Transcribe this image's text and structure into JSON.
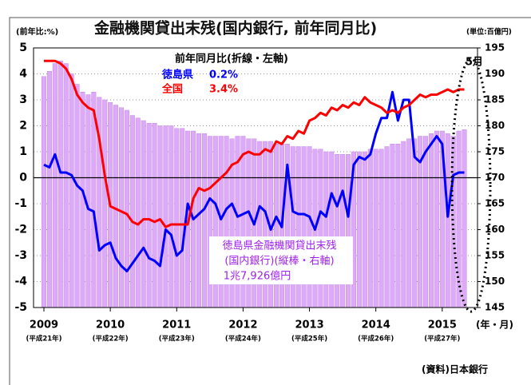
{
  "chart_data": {
    "type": "bar_line",
    "title": "金融機関貸出末残(国内銀行, 前年同月比)",
    "ylabel": "(前年比:%)",
    "y2label": "(単位:百億円)",
    "legend_title": "前年同月比(折線・左軸)",
    "ylim": [
      -5,
      5
    ],
    "yticks": [
      -5,
      -4,
      -3,
      -2,
      -1,
      0,
      1,
      2,
      3,
      4,
      5
    ],
    "y2lim": [
      145,
      195
    ],
    "y2ticks": [
      195,
      190,
      185,
      180,
      175,
      170,
      165,
      160,
      155,
      150,
      145
    ],
    "grid": true,
    "categories": [
      "2009",
      null,
      null,
      null,
      null,
      null,
      null,
      null,
      null,
      null,
      null,
      null,
      "2010",
      null,
      null,
      null,
      null,
      null,
      null,
      null,
      null,
      null,
      null,
      null,
      "2011",
      null,
      null,
      null,
      null,
      null,
      null,
      null,
      null,
      null,
      null,
      null,
      "2012",
      null,
      null,
      null,
      null,
      null,
      null,
      null,
      null,
      null,
      null,
      null,
      "2013",
      null,
      null,
      null,
      null,
      null,
      null,
      null,
      null,
      null,
      null,
      null,
      "2014",
      null,
      null,
      null,
      null,
      null,
      null,
      null,
      null,
      null,
      null,
      null,
      "2015",
      null,
      null,
      null,
      null
    ],
    "category_sublabels": [
      "(平成21年)",
      null,
      null,
      null,
      null,
      null,
      null,
      null,
      null,
      null,
      null,
      null,
      "(平成22年)",
      null,
      null,
      null,
      null,
      null,
      null,
      null,
      null,
      null,
      null,
      null,
      "(平成23年)",
      null,
      null,
      null,
      null,
      null,
      null,
      null,
      null,
      null,
      null,
      null,
      "(平成24年)",
      null,
      null,
      null,
      null,
      null,
      null,
      null,
      null,
      null,
      null,
      null,
      "(平成25年)",
      null,
      null,
      null,
      null,
      null,
      null,
      null,
      null,
      null,
      null,
      null,
      "(平成26年)",
      null,
      null,
      null,
      null,
      null,
      null,
      null,
      null,
      null,
      null,
      null,
      "(平成27年)",
      null,
      null,
      null,
      null
    ],
    "series": [
      {
        "name": "徳島県金融機関貸出末残",
        "subtitle": "(国内銀行)(縦棒・右軸)",
        "type": "bar",
        "axis": "y2",
        "color": "#dcaaf7",
        "value_label": "1兆7,926億円",
        "values": [
          189.5,
          190.5,
          192,
          192.5,
          192,
          190,
          188,
          186.5,
          186,
          186.5,
          185.5,
          185,
          184.5,
          184,
          183.5,
          183,
          182,
          181.5,
          181,
          180.5,
          180.5,
          180,
          180,
          180,
          179.5,
          179.5,
          179,
          179,
          178.5,
          178.5,
          178,
          178,
          178,
          178,
          177.5,
          178,
          178,
          177.5,
          177.5,
          177,
          177,
          177,
          176.5,
          176.5,
          176.5,
          176,
          176,
          176,
          176,
          175.5,
          175.5,
          175,
          175,
          174.5,
          174.5,
          174.5,
          175,
          175,
          175,
          175.5,
          175.5,
          175.5,
          176,
          176.5,
          176.5,
          177,
          177.5,
          177.5,
          178,
          178,
          178.5,
          179,
          179,
          178.5,
          178,
          179,
          179.26
        ]
      },
      {
        "name": "徳島県",
        "type": "line",
        "axis": "y",
        "color": "#0000ff",
        "value_label": "0.2%",
        "values": [
          0.5,
          0.4,
          0.9,
          0.2,
          0.2,
          0.1,
          -0.3,
          -0.5,
          -1.2,
          -1.3,
          -2.8,
          -2.6,
          -2.5,
          -3.1,
          -3.4,
          -3.6,
          -3.3,
          -3.0,
          -2.7,
          -3.1,
          -3.2,
          -3.4,
          -2.0,
          -2.2,
          -3.0,
          -2.8,
          -1.0,
          -1.6,
          -1.4,
          -1.2,
          -0.8,
          -1.0,
          -1.6,
          -1.2,
          -1.0,
          -1.5,
          -1.4,
          -1.3,
          -1.8,
          -1.1,
          -1.3,
          -2.0,
          -1.5,
          -1.9,
          0.5,
          -1.3,
          -1.4,
          -1.4,
          -1.5,
          -2.0,
          -1.3,
          -1.5,
          -0.6,
          -1.1,
          -0.5,
          -1.5,
          0.5,
          0.8,
          0.7,
          0.9,
          1.7,
          2.3,
          2.3,
          3.3,
          2.2,
          3.0,
          3.0,
          0.8,
          0.6,
          1.0,
          1.3,
          1.6,
          1.3,
          -1.5,
          0.1,
          0.2,
          0.2
        ]
      },
      {
        "name": "全国",
        "type": "line",
        "axis": "y",
        "color": "#ff0000",
        "value_label": "3.4%",
        "values": [
          4.5,
          4.5,
          4.5,
          4.4,
          4.2,
          3.8,
          3.2,
          2.9,
          2.7,
          2.6,
          1.5,
          0.1,
          -1.1,
          -1.2,
          -1.3,
          -1.4,
          -1.7,
          -1.8,
          -1.6,
          -1.6,
          -1.7,
          -1.6,
          -1.9,
          -1.8,
          -1.8,
          -1.8,
          -1.8,
          -0.8,
          -0.4,
          -0.5,
          -0.4,
          -0.2,
          0.0,
          0.2,
          0.5,
          0.6,
          0.9,
          1.0,
          0.9,
          0.9,
          1.1,
          1.0,
          1.4,
          1.3,
          1.6,
          1.5,
          1.8,
          1.7,
          2.2,
          2.3,
          2.5,
          2.4,
          2.7,
          2.6,
          2.8,
          2.7,
          2.9,
          2.8,
          3.1,
          2.9,
          2.8,
          2.7,
          2.5,
          2.6,
          2.5,
          2.7,
          2.8,
          3.0,
          3.2,
          3.1,
          3.2,
          3.2,
          3.3,
          3.4,
          3.3,
          3.4,
          3.4
        ]
      }
    ],
    "annotations": [
      "5月",
      "(年・月)"
    ],
    "source": "(資料)日本銀行"
  }
}
